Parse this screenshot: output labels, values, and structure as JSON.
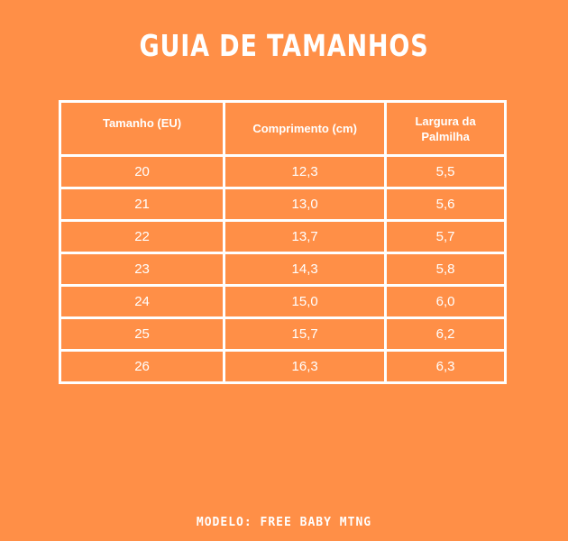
{
  "title": "GUIA DE TAMANHOS",
  "table": {
    "headers": [
      "Tamanho (EU)",
      "Comprimento (cm)",
      "Largura da Palmilha"
    ],
    "rows": [
      [
        "20",
        "12,3",
        "5,5"
      ],
      [
        "21",
        "13,0",
        "5,6"
      ],
      [
        "22",
        "13,7",
        "5,7"
      ],
      [
        "23",
        "14,3",
        "5,8"
      ],
      [
        "24",
        "15,0",
        "6,0"
      ],
      [
        "25",
        "15,7",
        "6,2"
      ],
      [
        "26",
        "16,3",
        "6,3"
      ]
    ]
  },
  "footer": "MODELO: FREE BABY MTNG",
  "colors": {
    "background": "#FF8F47",
    "text": "#FFFFFF",
    "grid": "#FFFFFF"
  }
}
